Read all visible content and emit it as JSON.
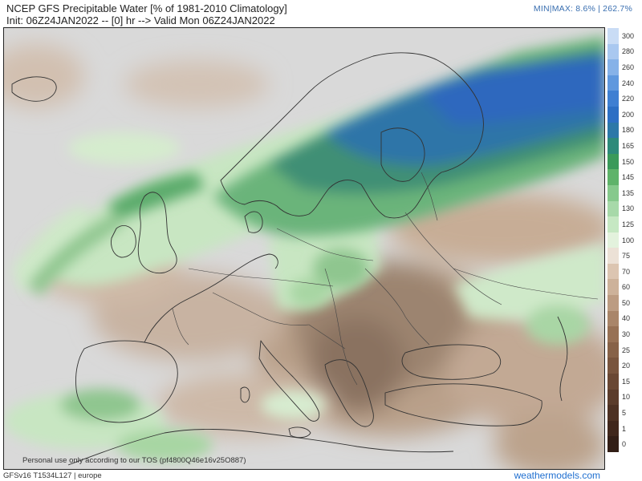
{
  "header": {
    "title_line1": "NCEP GFS Precipitable Water [% of 1981-2010 Climatology]",
    "title_line2": "Init: 06Z24JAN2022 -- [0] hr --> Valid Mon 06Z24JAN2022",
    "minmax": "MIN|MAX: 8.6% | 262.7%"
  },
  "map": {
    "region": "europe",
    "tos_notice": "Personal use only according to our TOS (pf4800Q46e16v25O887)"
  },
  "footer": {
    "model_info": "GFSv16 T1534L127 | europe",
    "brand": "weathermodels.com"
  },
  "colorbar": {
    "labels": [
      "300",
      "280",
      "260",
      "240",
      "220",
      "200",
      "180",
      "165",
      "150",
      "145",
      "135",
      "130",
      "125",
      "100",
      "75",
      "70",
      "60",
      "50",
      "40",
      "30",
      "25",
      "20",
      "15",
      "10",
      "5",
      "1",
      "0"
    ],
    "colors": [
      "#c9dcf5",
      "#a9c8f0",
      "#86b2e8",
      "#5f98de",
      "#3f7fd2",
      "#2d6fc4",
      "#2c78a8",
      "#2d8a7a",
      "#3a9a5a",
      "#5fb36a",
      "#86c98c",
      "#a7d9a9",
      "#c6e8c3",
      "#e3f2dd",
      "#ece1d6",
      "#dcc5b1",
      "#cdb29a",
      "#bc9c82",
      "#a98569",
      "#977155",
      "#876248",
      "#79553e",
      "#6a4834",
      "#5b3c2b",
      "#4d3123",
      "#40271c",
      "#321e16"
    ],
    "accent_brand": "#1f6fd0",
    "minmax_color": "#3a6fb0"
  }
}
